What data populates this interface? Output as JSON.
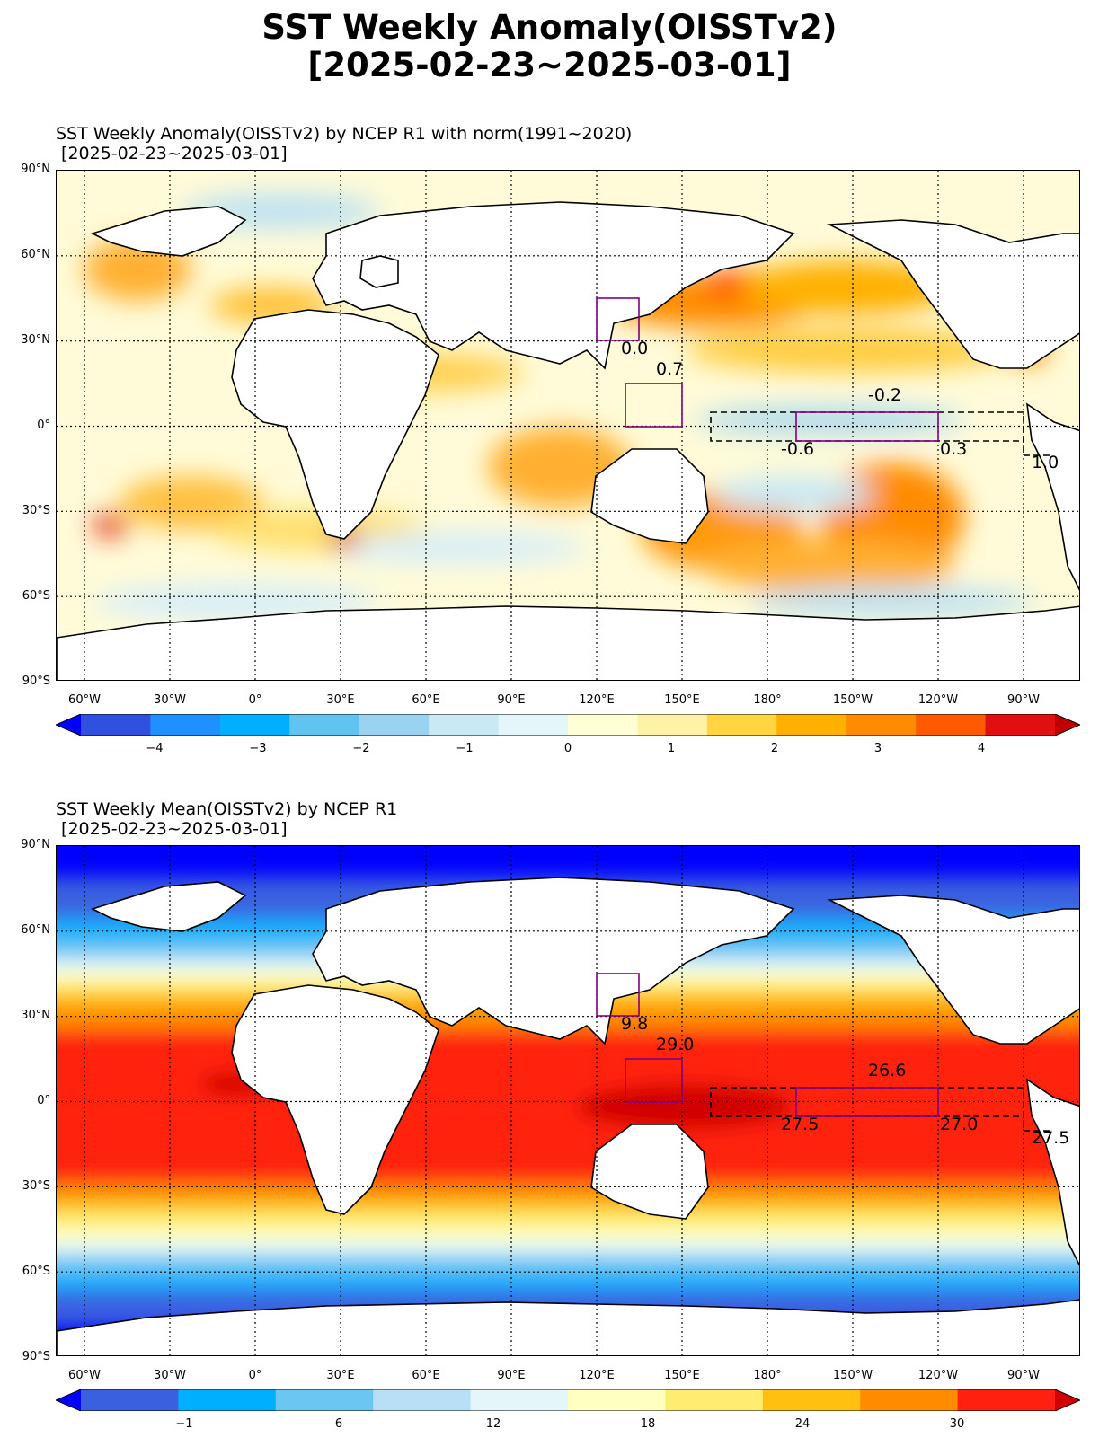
{
  "figure": {
    "title_line1": "SST Weekly Anomaly(OISSTv2)",
    "title_line2": "[2025-02-23~2025-03-01]"
  },
  "lat_labels": [
    "90°N",
    "60°N",
    "30°N",
    "0°",
    "30°S",
    "60°S",
    "90°S"
  ],
  "lon_labels": [
    "60°W",
    "30°W",
    "0°",
    "30°E",
    "60°E",
    "90°E",
    "120°E",
    "150°E",
    "180°",
    "150°W",
    "120°W",
    "90°W"
  ],
  "panels": [
    {
      "title_line1": "SST Weekly Anomaly(OISSTv2) by NCEP R1 with norm(1991~2020)",
      "title_line2": " [2025-02-23~2025-03-01]",
      "type": "anomaly",
      "box_values": [
        "0.0",
        "0.7",
        "-0.2",
        "-0.6",
        "0.3",
        "1.0"
      ],
      "colorbar": {
        "colors": [
          "#0000ff",
          "#3050e0",
          "#1e90ff",
          "#00b0ff",
          "#5fc5f0",
          "#9ad3ef",
          "#c9e9f5",
          "#e4f6fa",
          "#ffffd6",
          "#fff2a6",
          "#ffd640",
          "#ffb000",
          "#ff8c00",
          "#ff5a00",
          "#e01010",
          "#c00000"
        ],
        "tick_labels": [
          "−4",
          "−3",
          "−2",
          "−1",
          "0",
          "1",
          "2",
          "3",
          "4"
        ]
      }
    },
    {
      "title_line1": "SST Weekly Mean(OISSTv2) by NCEP R1",
      "title_line2": " [2025-02-23~2025-03-01]",
      "type": "mean",
      "box_values": [
        "9.8",
        "29.0",
        "26.6",
        "27.5",
        "27.0",
        "27.5"
      ],
      "colorbar": {
        "colors": [
          "#0000ff",
          "#3a60e0",
          "#00b0ff",
          "#6cc6f2",
          "#b8dff5",
          "#e4f6fa",
          "#ffffc0",
          "#ffec70",
          "#ffc010",
          "#ff8c00",
          "#ff2010",
          "#d00000"
        ],
        "tick_labels": [
          "−1",
          "6",
          "12",
          "18",
          "24",
          "30"
        ]
      }
    }
  ],
  "chart_data": [
    {
      "type": "heatmap",
      "title": "SST Weekly Anomaly(OISSTv2) by NCEP R1 with norm(1991~2020) [2025-02-23~2025-03-01]",
      "colorbar_ticks": [
        -4,
        -3,
        -2,
        -1,
        0,
        1,
        2,
        3,
        4
      ],
      "colorbar_range": [
        -5,
        5
      ],
      "regions": [
        {
          "lon": [
            120,
            135
          ],
          "lat": [
            30,
            45
          ],
          "value": 0.0
        },
        {
          "lon": [
            130,
            150
          ],
          "lat": [
            0,
            15
          ],
          "value": 0.7
        },
        {
          "lon": [
            -150,
            -90
          ],
          "lat": [
            -5,
            5
          ],
          "value": -0.2
        },
        {
          "lon": [
            160,
            -150
          ],
          "lat": [
            -5,
            5
          ],
          "value": -0.6
        },
        {
          "lon": [
            -170,
            -120
          ],
          "lat": [
            -5,
            5
          ],
          "value": 0.3
        },
        {
          "lon": [
            -90,
            -80
          ],
          "lat": [
            -10,
            0
          ],
          "value": 1.0
        }
      ]
    },
    {
      "type": "heatmap",
      "title": "SST Weekly Mean(OISSTv2) by NCEP R1 [2025-02-23~2025-03-01]",
      "colorbar_ticks": [
        -1,
        6,
        12,
        18,
        24,
        30
      ],
      "regions": [
        {
          "lon": [
            120,
            135
          ],
          "lat": [
            30,
            45
          ],
          "value": 9.8
        },
        {
          "lon": [
            130,
            150
          ],
          "lat": [
            0,
            15
          ],
          "value": 29.0
        },
        {
          "lon": [
            -150,
            -90
          ],
          "lat": [
            -5,
            5
          ],
          "value": 26.6
        },
        {
          "lon": [
            160,
            -150
          ],
          "lat": [
            -5,
            5
          ],
          "value": 27.5
        },
        {
          "lon": [
            -170,
            -120
          ],
          "lat": [
            -5,
            5
          ],
          "value": 27.0
        },
        {
          "lon": [
            -90,
            -80
          ],
          "lat": [
            -10,
            0
          ],
          "value": 27.5
        }
      ]
    }
  ]
}
